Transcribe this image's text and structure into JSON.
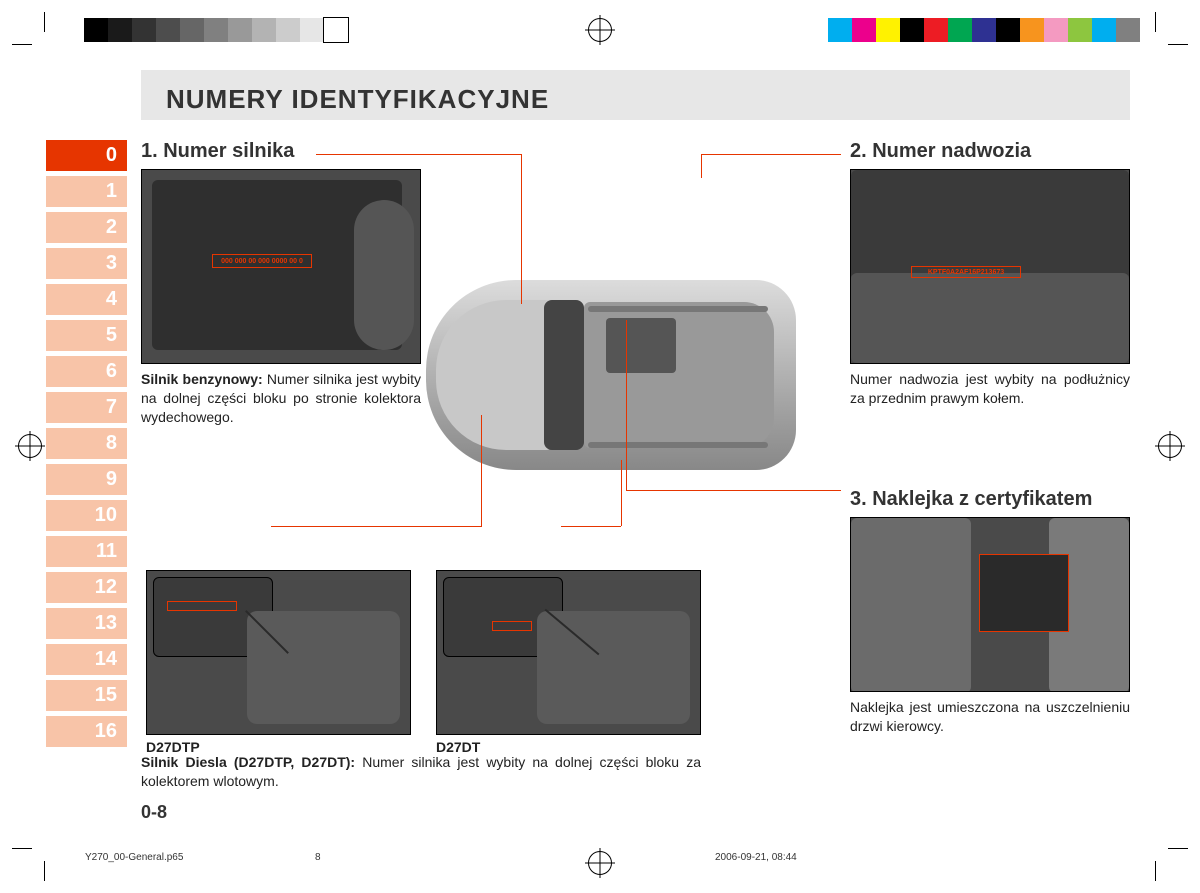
{
  "print": {
    "gray_swatches": [
      "#000000",
      "#1a1a1a",
      "#333333",
      "#4d4d4d",
      "#666666",
      "#808080",
      "#999999",
      "#b3b3b3",
      "#cccccc",
      "#e6e6e6",
      "#ffffff"
    ],
    "color_swatches": [
      "#00aeef",
      "#ec008c",
      "#fff200",
      "#000000",
      "#ed1c24",
      "#00a651",
      "#2e3192",
      "#000000",
      "#f7941e",
      "#f49ac1",
      "#8dc63f",
      "#00aeef",
      "#808080"
    ]
  },
  "header": {
    "title": "NUMERY IDENTYFIKACYJNE"
  },
  "tabs": {
    "active_index": 0,
    "items": [
      "0",
      "1",
      "2",
      "3",
      "4",
      "5",
      "6",
      "7",
      "8",
      "9",
      "10",
      "11",
      "12",
      "13",
      "14",
      "15",
      "16"
    ]
  },
  "section1": {
    "heading": "1. Numer silnika",
    "engine_number_text": "000 000 00 000 0000 00 0",
    "petrol_caption_bold": "Silnik benzynowy:",
    "petrol_caption": " Numer silnika jest wybity na dolnej części bloku po stronie kolektora wydechowego.",
    "diesel_caption_bold": "Silnik Diesla (D27DTP, D27DT):",
    "diesel_caption": " Numer silnika jest wybity na dolnej części bloku za kolektorem wlotowym.",
    "label_d27dtp": "D27DTP",
    "label_d27dt": "D27DT"
  },
  "section2": {
    "heading": "2. Numer nadwozia",
    "vin_text": "KPTF0A2AF16P213673",
    "caption": "Numer nadwozia jest wybity na podłużnicy za przednim prawym kołem."
  },
  "section3": {
    "heading": "3. Naklejka z certyfikatem",
    "caption": "Naklejka jest umieszczona na uszczelnieniu drzwi kierowcy."
  },
  "page_number": "0-8",
  "footer": {
    "filename": "Y270_00-General.p65",
    "page": "8",
    "date": "2006-09-21, 08:44"
  },
  "colors": {
    "accent": "#e63500",
    "tab_inactive": "#f8c4a8",
    "header_bg": "#e7e7e7"
  }
}
